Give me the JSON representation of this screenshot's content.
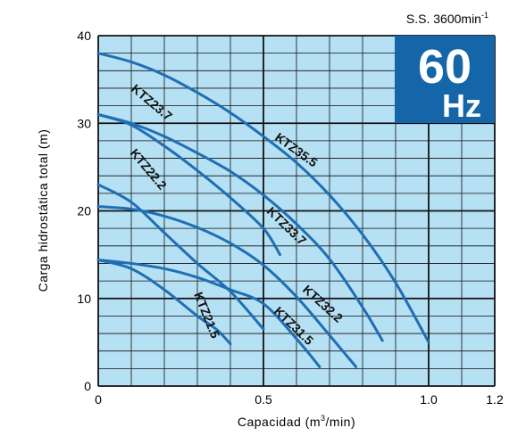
{
  "speed_label": "S.S. 3600min",
  "speed_exp": "-1",
  "badge": {
    "frequency": "60",
    "unit": "Hz",
    "color": "#1466a8"
  },
  "colors": {
    "plot_bg": "#b6e0f3",
    "grid": "#111111",
    "curve": "#1f6fb5"
  },
  "chart_data": {
    "type": "line",
    "xlabel_pre": "Capacidad (m",
    "xlabel_sup": "3",
    "xlabel_post": "/min)",
    "ylabel": "Carga hidrostática total (m)",
    "xlim": [
      0,
      1.2
    ],
    "ylim": [
      0,
      40
    ],
    "x_ticks": [
      {
        "v": 0,
        "label": "0"
      },
      {
        "v": 0.5,
        "label": "0.5"
      },
      {
        "v": 1.0,
        "label": "1.0"
      },
      {
        "v": 1.2,
        "label": "1.2"
      }
    ],
    "y_ticks": [
      {
        "v": 0,
        "label": "0"
      },
      {
        "v": 10,
        "label": "10"
      },
      {
        "v": 20,
        "label": "20"
      },
      {
        "v": 30,
        "label": "30"
      },
      {
        "v": 40,
        "label": "40"
      }
    ],
    "grid": true,
    "series": [
      {
        "name": "KTZ21.5",
        "x": [
          0,
          0.1,
          0.2,
          0.3,
          0.36,
          0.4
        ],
        "y": [
          14.4,
          13.4,
          11.0,
          8.0,
          6.4,
          4.8
        ]
      },
      {
        "name": "KTZ22.2",
        "x": [
          0,
          0.1,
          0.2,
          0.3,
          0.4,
          0.5
        ],
        "y": [
          23.0,
          21.0,
          17.5,
          14.0,
          10.8,
          6.5
        ]
      },
      {
        "name": "KTZ23.7",
        "x": [
          0,
          0.1,
          0.2,
          0.3,
          0.4,
          0.5,
          0.55
        ],
        "y": [
          31.0,
          29.8,
          27.4,
          24.6,
          21.5,
          18.0,
          15.0
        ]
      },
      {
        "name": "KTZ31.5",
        "x": [
          0,
          0.1,
          0.2,
          0.3,
          0.4,
          0.5,
          0.6,
          0.67
        ],
        "y": [
          14.4,
          14.0,
          13.4,
          12.4,
          11.0,
          9.4,
          5.4,
          2.2
        ]
      },
      {
        "name": "KTZ32.2",
        "x": [
          0,
          0.1,
          0.2,
          0.3,
          0.4,
          0.5,
          0.6,
          0.7,
          0.78
        ],
        "y": [
          20.5,
          20.2,
          19.4,
          18.1,
          16.3,
          13.8,
          10.2,
          5.8,
          2.2
        ]
      },
      {
        "name": "KTZ33.7",
        "x": [
          0,
          0.1,
          0.2,
          0.3,
          0.4,
          0.5,
          0.6,
          0.7,
          0.8,
          0.86
        ],
        "y": [
          31.0,
          30.0,
          28.5,
          26.6,
          24.5,
          21.8,
          18.5,
          14.5,
          9.0,
          5.2
        ]
      },
      {
        "name": "KTZ35.5",
        "x": [
          0,
          0.1,
          0.2,
          0.3,
          0.4,
          0.5,
          0.6,
          0.7,
          0.8,
          0.9,
          1.0
        ],
        "y": [
          38.0,
          37.0,
          35.5,
          33.5,
          31.2,
          28.5,
          25.5,
          21.8,
          17.3,
          11.8,
          5.0
        ]
      }
    ],
    "labels": [
      "KTZ21.5",
      "KTZ22.2",
      "KTZ23.7",
      "KTZ31.5",
      "KTZ32.2",
      "KTZ33.7",
      "KTZ35.5",
      "KTZ23.7"
    ]
  }
}
